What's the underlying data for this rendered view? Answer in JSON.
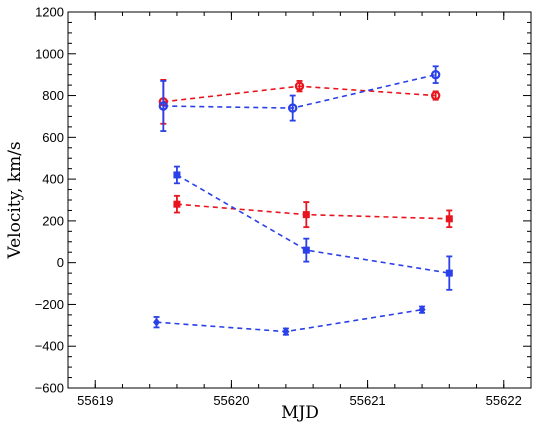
{
  "chart_data": {
    "type": "scatter",
    "title": "",
    "xlabel": "MJD",
    "ylabel": "Velocity, km/s",
    "xlim": [
      55618.8,
      55622.2
    ],
    "ylim": [
      -600,
      1200
    ],
    "xticks": [
      55619,
      55620,
      55621,
      55622
    ],
    "yticks": [
      -600,
      -400,
      -200,
      0,
      200,
      400,
      600,
      800,
      1000,
      1200
    ],
    "grid": false,
    "series": [
      {
        "color": "#e8141e",
        "marker": "circle",
        "linestyle": "dashed",
        "x": [
          55619.5,
          55620.5,
          55621.5
        ],
        "y": [
          770,
          845,
          800
        ],
        "err": [
          105,
          25,
          20
        ]
      },
      {
        "color": "#2a40e8",
        "marker": "circle",
        "linestyle": "dashed",
        "x": [
          55619.5,
          55620.45,
          55621.5
        ],
        "y": [
          750,
          740,
          900
        ],
        "err": [
          120,
          60,
          40
        ]
      },
      {
        "color": "#e8141e",
        "marker": "square",
        "linestyle": "dashed",
        "x": [
          55619.6,
          55620.55,
          55621.6
        ],
        "y": [
          280,
          230,
          210
        ],
        "err": [
          40,
          60,
          40
        ]
      },
      {
        "color": "#2a40e8",
        "marker": "square",
        "linestyle": "dashed",
        "x": [
          55619.6,
          55620.55,
          55621.6
        ],
        "y": [
          420,
          60,
          -50
        ],
        "err": [
          40,
          55,
          80
        ]
      },
      {
        "color": "#2a40e8",
        "marker": "diamond",
        "linestyle": "dashed",
        "x": [
          55619.45,
          55620.4,
          55621.4
        ],
        "y": [
          -285,
          -330,
          -225
        ],
        "err": [
          25,
          15,
          15
        ]
      }
    ]
  }
}
